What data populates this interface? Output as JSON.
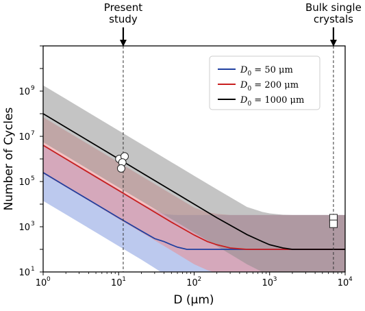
{
  "chart_data": {
    "type": "line",
    "xlabel": "D (μm)",
    "ylabel": "Number of Cycles",
    "x_scale": "log",
    "y_scale": "log",
    "xlim": [
      1,
      10000
    ],
    "ylim": [
      10,
      100000000000
    ],
    "x_ticks": [
      {
        "value": 1,
        "base": "10",
        "exp": "0"
      },
      {
        "value": 10,
        "base": "10",
        "exp": "1"
      },
      {
        "value": 100,
        "base": "10",
        "exp": "2"
      },
      {
        "value": 1000,
        "base": "10",
        "exp": "3"
      },
      {
        "value": 10000,
        "base": "10",
        "exp": "4"
      }
    ],
    "y_ticks": [
      {
        "value": 10,
        "base": "10",
        "exp": "1"
      },
      {
        "value": 1000,
        "base": "10",
        "exp": "3"
      },
      {
        "value": 100000,
        "base": "10",
        "exp": "5"
      },
      {
        "value": 10000000,
        "base": "10",
        "exp": "7"
      },
      {
        "value": 1000000000,
        "base": "10",
        "exp": "9"
      }
    ],
    "grid": false,
    "legend_position": "top-right",
    "series": [
      {
        "name_var": "D",
        "name_sub": "0",
        "name_rest": " = 50 μm",
        "color": "#1f3fa0",
        "band_color": "#7a93dd",
        "x": [
          1,
          2,
          5,
          10,
          20,
          30,
          40,
          50,
          60,
          80,
          100,
          1000,
          10000
        ],
        "y": [
          250000,
          62000,
          10000,
          2500,
          650,
          300,
          220,
          160,
          125,
          100,
          100,
          100,
          100
        ],
        "band_low": [
          14000,
          3500,
          560,
          140,
          35,
          15,
          8,
          6,
          5,
          5,
          5,
          5,
          5
        ],
        "band_high": [
          4500000,
          1100000,
          180000,
          45000,
          11000,
          5500,
          3700,
          3400,
          3300,
          3300,
          3300,
          3300,
          3300
        ]
      },
      {
        "name_var": "D",
        "name_sub": "0",
        "name_rest": " = 200 μm",
        "color": "#c81e1e",
        "band_color": "#ee8888",
        "x": [
          1,
          2,
          5,
          10,
          20,
          50,
          100,
          150,
          200,
          300,
          500,
          1000,
          10000
        ],
        "y": [
          4000000,
          1000000,
          160000,
          40000,
          10000,
          1600,
          430,
          220,
          160,
          115,
          100,
          100,
          100
        ],
        "band_low": [
          220000,
          56000,
          9000,
          2200,
          560,
          90,
          22,
          12,
          9,
          6,
          5,
          5,
          5
        ],
        "band_high": [
          70000000,
          17500000,
          2800000,
          700000,
          175000,
          28000,
          7000,
          4400,
          3700,
          3300,
          3300,
          3300,
          3300
        ]
      },
      {
        "name_var": "D",
        "name_sub": "0",
        "name_rest": " = 1000 μm",
        "color": "#000000",
        "band_color": "#8a8a8a",
        "x": [
          1,
          2,
          5,
          10,
          20,
          50,
          100,
          200,
          500,
          800,
          1000,
          1500,
          2000,
          10000
        ],
        "y": [
          100000000,
          25000000,
          4000000,
          1000000,
          250000,
          40000,
          10000,
          2500,
          450,
          220,
          160,
          115,
          100,
          100
        ],
        "band_low": [
          5500000,
          1400000,
          220000,
          55000,
          14000,
          2200,
          550,
          140,
          22,
          10,
          8,
          6,
          5,
          5
        ],
        "band_high": [
          1800000000,
          450000000,
          72000000,
          18000000,
          4500000,
          720000,
          180000,
          45000,
          7500,
          4500,
          3900,
          3400,
          3300,
          3300
        ]
      }
    ],
    "circles": [
      {
        "x": 10.2,
        "y": 1000000
      },
      {
        "x": 12.0,
        "y": 1300000
      },
      {
        "x": 11.2,
        "y": 700000
      },
      {
        "x": 10.8,
        "y": 380000
      }
    ],
    "squares": [
      {
        "x": 7000,
        "y": 2400
      },
      {
        "x": 7000,
        "y": 1350
      }
    ],
    "vlines": [
      {
        "x": 11.5,
        "label_lines": [
          "Present",
          "study"
        ]
      },
      {
        "x": 7000,
        "label_lines": [
          "Bulk single",
          "crystals"
        ]
      }
    ]
  }
}
